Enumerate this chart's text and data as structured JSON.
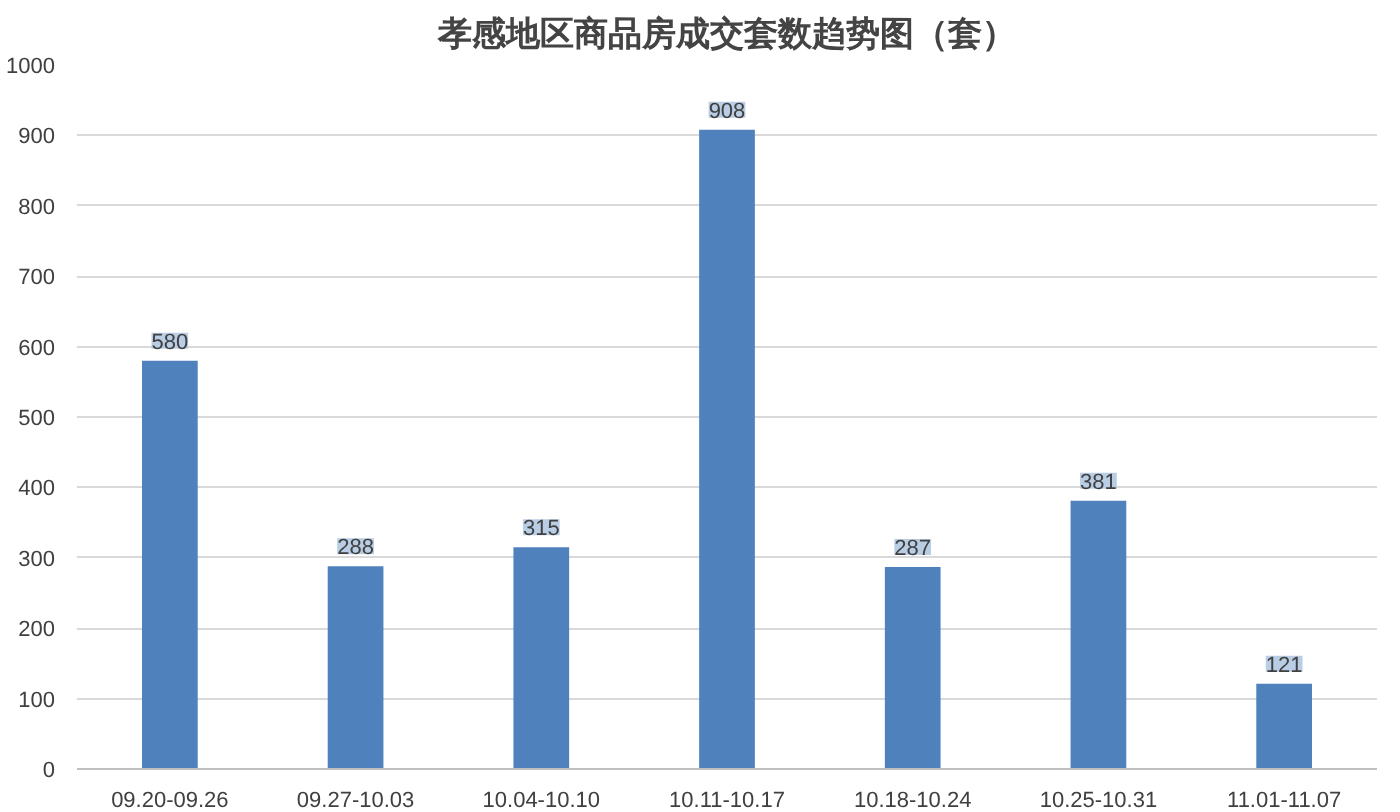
{
  "chart_data": {
    "type": "bar",
    "title": "孝感地区商品房成交套数趋势图（套）",
    "categories": [
      "09.20-09.26",
      "09.27-10.03",
      "10.04-10.10",
      "10.11-10.17",
      "10.18-10.24",
      "10.25-10.31",
      "11.01-11.07"
    ],
    "values": [
      580,
      288,
      315,
      908,
      287,
      381,
      121
    ],
    "color": "#4f81bd",
    "ylim": [
      0,
      1000
    ],
    "yticks": [
      0,
      100,
      200,
      300,
      400,
      500,
      600,
      700,
      800,
      900,
      1000
    ],
    "grid": "y",
    "data_labels": true
  }
}
